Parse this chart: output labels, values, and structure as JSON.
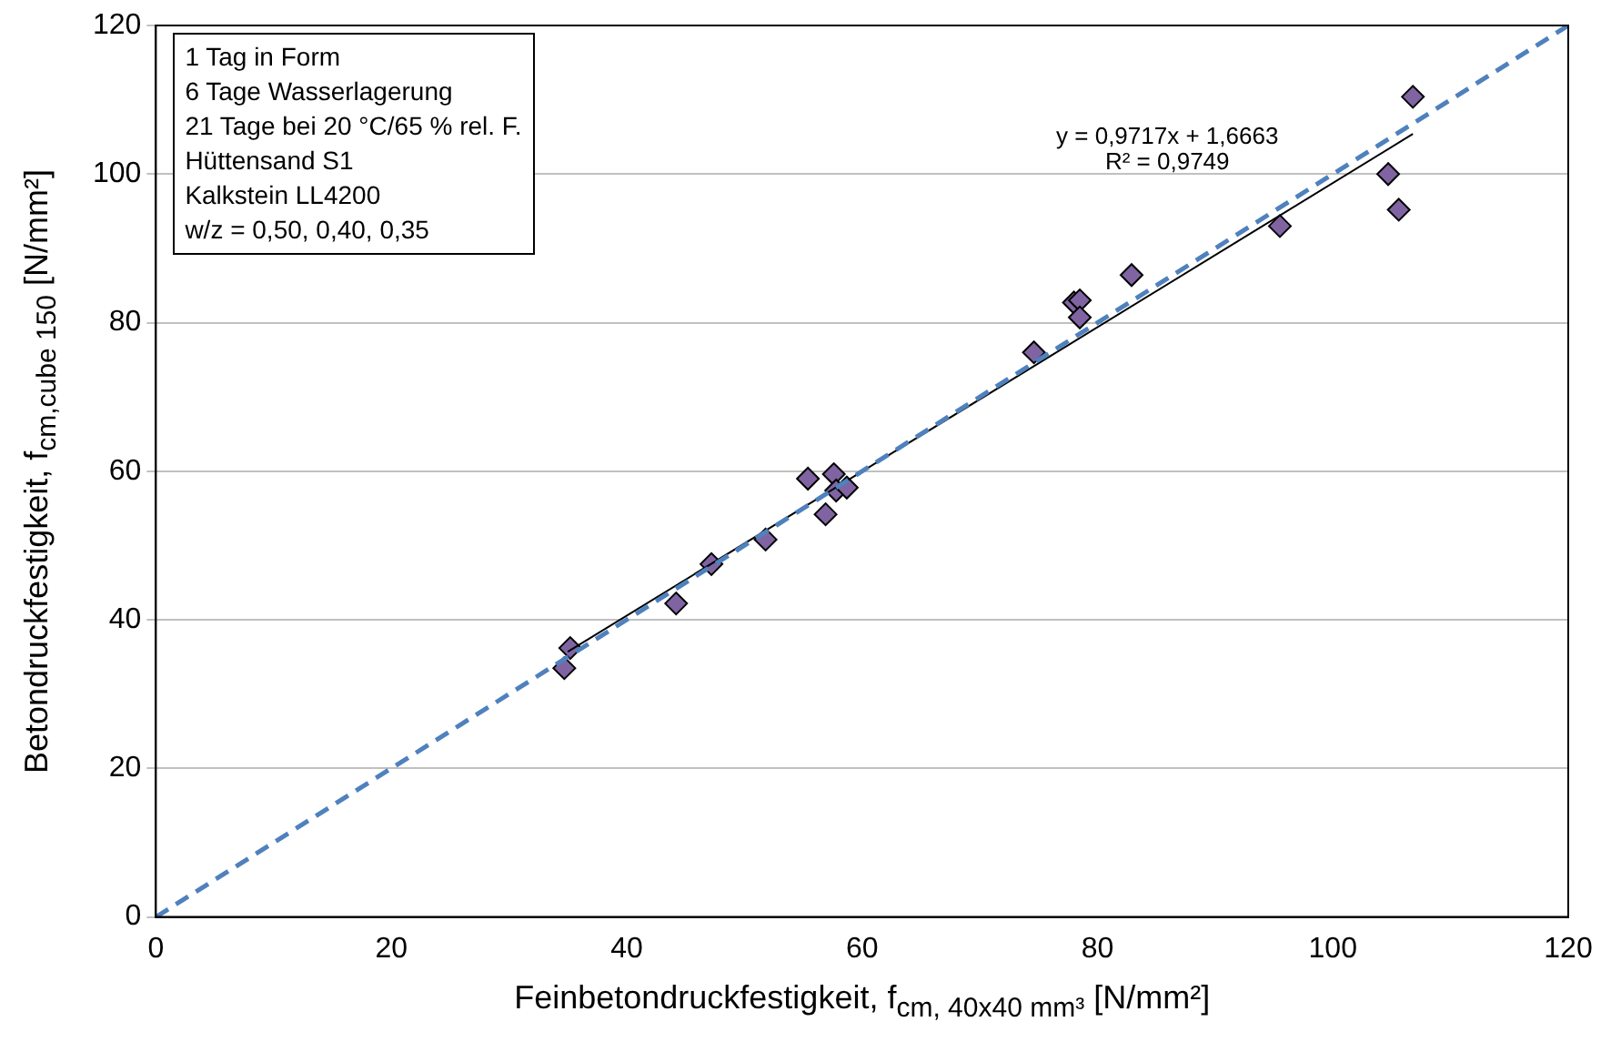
{
  "chart_data": {
    "type": "scatter",
    "xlabel": "Feinbetondruckfestigkeit, f$_{cm, 40x40 mm³}$ [N/mm²]",
    "ylabel": "Betondruckfestigkeit, f$_{cm,cube 150}$ [N/mm²]",
    "xlim": [
      0,
      120
    ],
    "ylim": [
      0,
      120
    ],
    "xticks": [
      0,
      20,
      40,
      60,
      80,
      100,
      120
    ],
    "yticks": [
      0,
      20,
      40,
      60,
      80,
      100,
      120
    ],
    "grid": "y",
    "legend": false,
    "series": [
      {
        "type": "line",
        "color": "#4f81bd",
        "line_style": "dashed",
        "marker": "none",
        "x": [
          0,
          120
        ],
        "values": [
          0,
          120
        ]
      },
      {
        "type": "line",
        "color": "#000000",
        "line_style": "solid",
        "marker": "none",
        "x": [
          35,
          106.8
        ],
        "values": [
          35.7,
          105.4
        ]
      },
      {
        "type": "scatter",
        "color": "#8064a2",
        "marker": "diamond",
        "x": [
          34.7,
          35.2,
          44.2,
          47.2,
          51.8,
          55.4,
          57.6,
          56.9,
          57.8,
          58.7,
          74.6,
          78.0,
          78.5,
          78.5,
          82.9,
          95.5,
          104.7,
          105.6,
          106.8
        ],
        "values": [
          33.5,
          36.2,
          42.2,
          47.5,
          50.8,
          59.0,
          59.6,
          54.2,
          57.4,
          57.8,
          76.0,
          82.7,
          83.0,
          80.7,
          86.4,
          93.0,
          100.0,
          95.2,
          110.4
        ]
      }
    ],
    "annotations": [
      "1 Tag in Form",
      "6 Tage Wasserlagerung",
      "21 Tage bei 20 °C/65 % rel. F.",
      "Hüttensand S1",
      "Kalkstein LL4200",
      "w/z = 0,50, 0,40, 0,35",
      "y = 0,9717x + 1,6663",
      "R² = 0,9749"
    ]
  }
}
